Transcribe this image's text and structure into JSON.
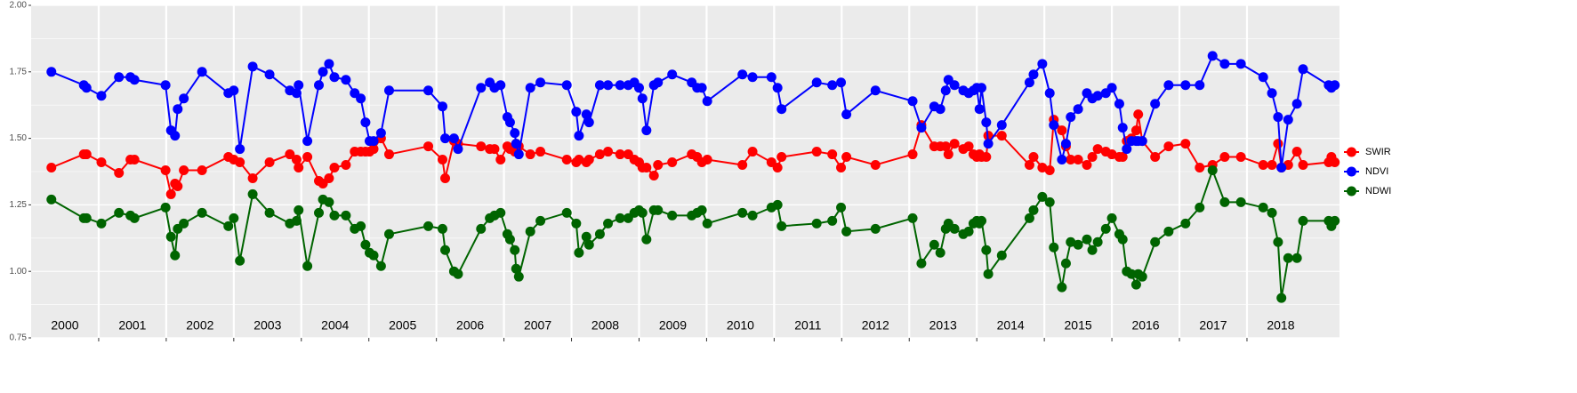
{
  "chart_data": {
    "type": "line",
    "x": [
      2000.3,
      2000.78,
      2000.82,
      2001.04,
      2001.3,
      2001.47,
      2001.53,
      2001.99,
      2002.07,
      2002.13,
      2002.17,
      2002.26,
      2002.53,
      2002.92,
      2003.0,
      2003.09,
      2003.28,
      2003.53,
      2003.83,
      2003.93,
      2003.96,
      2004.09,
      2004.26,
      2004.32,
      2004.41,
      2004.49,
      2004.66,
      2004.79,
      2004.88,
      2004.95,
      2005.01,
      2005.07,
      2005.18,
      2005.3,
      2005.88,
      2006.09,
      2006.13,
      2006.26,
      2006.32,
      2006.66,
      2006.79,
      2006.86,
      2006.95,
      2007.05,
      2007.09,
      2007.16,
      2007.18,
      2007.22,
      2007.39,
      2007.54,
      2007.93,
      2008.07,
      2008.11,
      2008.22,
      2008.26,
      2008.42,
      2008.54,
      2008.72,
      2008.84,
      2008.93,
      2009.0,
      2009.05,
      2009.11,
      2009.22,
      2009.28,
      2009.49,
      2009.78,
      2009.86,
      2009.93,
      2010.01,
      2010.53,
      2010.68,
      2010.96,
      2011.05,
      2011.11,
      2011.63,
      2011.86,
      2011.99,
      2012.07,
      2012.5,
      2013.05,
      2013.18,
      2013.37,
      2013.46,
      2013.54,
      2013.58,
      2013.67,
      2013.8,
      2013.88,
      2013.95,
      2014.0,
      2014.04,
      2014.07,
      2014.14,
      2014.17,
      2014.37,
      2014.78,
      2014.84,
      2014.97,
      2015.08,
      2015.14,
      2015.26,
      2015.32,
      2015.39,
      2015.5,
      2015.63,
      2015.71,
      2015.79,
      2015.91,
      2016.0,
      2016.11,
      2016.16,
      2016.22,
      2016.29,
      2016.36,
      2016.39,
      2016.45,
      2016.64,
      2016.84,
      2017.09,
      2017.3,
      2017.49,
      2017.67,
      2017.91,
      2018.24,
      2018.37,
      2018.46,
      2018.51,
      2018.61,
      2018.74,
      2018.83,
      2019.21,
      2019.25,
      2019.3
    ],
    "series": [
      {
        "name": "SWIR",
        "color": "#ff0000",
        "values": [
          1.39,
          1.44,
          1.44,
          1.41,
          1.37,
          1.42,
          1.42,
          1.38,
          1.29,
          1.33,
          1.32,
          1.38,
          1.38,
          1.43,
          1.42,
          1.41,
          1.35,
          1.41,
          1.44,
          1.42,
          1.39,
          1.43,
          1.34,
          1.33,
          1.35,
          1.39,
          1.4,
          1.45,
          1.45,
          1.45,
          1.45,
          1.46,
          1.5,
          1.44,
          1.47,
          1.42,
          1.35,
          1.49,
          1.48,
          1.47,
          1.46,
          1.46,
          1.42,
          1.47,
          1.46,
          1.45,
          1.48,
          1.47,
          1.44,
          1.45,
          1.42,
          1.41,
          1.42,
          1.41,
          1.42,
          1.44,
          1.45,
          1.44,
          1.44,
          1.42,
          1.41,
          1.39,
          1.39,
          1.36,
          1.4,
          1.41,
          1.44,
          1.43,
          1.41,
          1.42,
          1.4,
          1.45,
          1.41,
          1.39,
          1.43,
          1.45,
          1.44,
          1.39,
          1.43,
          1.4,
          1.44,
          1.55,
          1.47,
          1.47,
          1.47,
          1.44,
          1.48,
          1.46,
          1.47,
          1.44,
          1.43,
          1.44,
          1.43,
          1.43,
          1.51,
          1.51,
          1.4,
          1.43,
          1.39,
          1.38,
          1.57,
          1.53,
          1.47,
          1.42,
          1.42,
          1.4,
          1.43,
          1.46,
          1.45,
          1.44,
          1.43,
          1.43,
          1.49,
          1.5,
          1.53,
          1.59,
          1.49,
          1.43,
          1.47,
          1.48,
          1.39,
          1.4,
          1.43,
          1.43,
          1.4,
          1.4,
          1.48,
          1.39,
          1.4,
          1.45,
          1.4,
          1.41,
          1.43,
          1.41
        ]
      },
      {
        "name": "NDVI",
        "color": "#0000ff",
        "values": [
          1.75,
          1.7,
          1.69,
          1.66,
          1.73,
          1.73,
          1.72,
          1.7,
          1.53,
          1.51,
          1.61,
          1.65,
          1.75,
          1.67,
          1.68,
          1.46,
          1.77,
          1.74,
          1.68,
          1.67,
          1.7,
          1.49,
          1.7,
          1.75,
          1.78,
          1.73,
          1.72,
          1.67,
          1.65,
          1.56,
          1.49,
          1.49,
          1.52,
          1.68,
          1.68,
          1.62,
          1.5,
          1.5,
          1.46,
          1.69,
          1.71,
          1.69,
          1.7,
          1.58,
          1.56,
          1.52,
          1.48,
          1.44,
          1.69,
          1.71,
          1.7,
          1.6,
          1.51,
          1.59,
          1.56,
          1.7,
          1.7,
          1.7,
          1.7,
          1.71,
          1.69,
          1.65,
          1.53,
          1.7,
          1.71,
          1.74,
          1.71,
          1.69,
          1.69,
          1.64,
          1.74,
          1.73,
          1.73,
          1.69,
          1.61,
          1.71,
          1.7,
          1.71,
          1.59,
          1.68,
          1.64,
          1.54,
          1.62,
          1.61,
          1.68,
          1.72,
          1.7,
          1.68,
          1.67,
          1.68,
          1.69,
          1.61,
          1.69,
          1.56,
          1.48,
          1.55,
          1.71,
          1.74,
          1.78,
          1.67,
          1.55,
          1.42,
          1.48,
          1.58,
          1.61,
          1.67,
          1.65,
          1.66,
          1.67,
          1.69,
          1.63,
          1.54,
          1.46,
          1.49,
          1.49,
          1.49,
          1.49,
          1.63,
          1.7,
          1.7,
          1.7,
          1.81,
          1.78,
          1.78,
          1.73,
          1.67,
          1.58,
          1.39,
          1.57,
          1.63,
          1.76,
          1.7,
          1.69,
          1.7
        ]
      },
      {
        "name": "NDWI",
        "color": "#006400",
        "values": [
          1.27,
          1.2,
          1.2,
          1.18,
          1.22,
          1.21,
          1.2,
          1.24,
          1.13,
          1.06,
          1.16,
          1.18,
          1.22,
          1.17,
          1.2,
          1.04,
          1.29,
          1.22,
          1.18,
          1.19,
          1.23,
          1.02,
          1.22,
          1.27,
          1.26,
          1.21,
          1.21,
          1.16,
          1.17,
          1.1,
          1.07,
          1.06,
          1.02,
          1.14,
          1.17,
          1.16,
          1.08,
          1.0,
          0.99,
          1.16,
          1.2,
          1.21,
          1.22,
          1.14,
          1.12,
          1.08,
          1.01,
          0.98,
          1.15,
          1.19,
          1.22,
          1.18,
          1.07,
          1.13,
          1.1,
          1.14,
          1.18,
          1.2,
          1.2,
          1.22,
          1.23,
          1.22,
          1.12,
          1.23,
          1.23,
          1.21,
          1.21,
          1.22,
          1.23,
          1.18,
          1.22,
          1.21,
          1.24,
          1.25,
          1.17,
          1.18,
          1.19,
          1.24,
          1.15,
          1.16,
          1.2,
          1.03,
          1.1,
          1.07,
          1.16,
          1.18,
          1.16,
          1.14,
          1.15,
          1.18,
          1.19,
          1.18,
          1.19,
          1.08,
          0.99,
          1.06,
          1.2,
          1.23,
          1.28,
          1.26,
          1.09,
          0.94,
          1.03,
          1.11,
          1.1,
          1.12,
          1.08,
          1.11,
          1.16,
          1.2,
          1.14,
          1.12,
          1.0,
          0.99,
          0.95,
          0.99,
          0.98,
          1.11,
          1.15,
          1.18,
          1.24,
          1.38,
          1.26,
          1.26,
          1.24,
          1.22,
          1.11,
          0.9,
          1.05,
          1.05,
          1.19,
          1.19,
          1.17,
          1.19
        ]
      }
    ],
    "xlim": [
      2000,
      2019.37
    ],
    "xticks": [
      2001,
      2002,
      2003,
      2004,
      2005,
      2006,
      2007,
      2008,
      2009,
      2010,
      2011,
      2012,
      2013,
      2014,
      2015,
      2016,
      2017,
      2018
    ],
    "ylim": [
      0.75,
      2.0
    ],
    "yticks": [
      0.75,
      {
        "value": 1,
        "label": "1.00"
      },
      1.25,
      {
        "value": 1.5,
        "label": "1.50"
      },
      1.75,
      {
        "value": 2,
        "label": "2.00"
      }
    ],
    "minor_yticks": [
      0.875,
      1.125,
      1.375,
      1.625,
      1.875
    ],
    "annotations": [
      {
        "x": 2000.5,
        "text": "2000"
      },
      {
        "x": 2001.5,
        "text": "2001"
      },
      {
        "x": 2002.5,
        "text": "2002"
      },
      {
        "x": 2003.5,
        "text": "2003"
      },
      {
        "x": 2004.5,
        "text": "2004"
      },
      {
        "x": 2005.5,
        "text": "2005"
      },
      {
        "x": 2006.5,
        "text": "2006"
      },
      {
        "x": 2007.5,
        "text": "2007"
      },
      {
        "x": 2008.5,
        "text": "2008"
      },
      {
        "x": 2009.5,
        "text": "2009"
      },
      {
        "x": 2010.5,
        "text": "2010"
      },
      {
        "x": 2011.5,
        "text": "2011"
      },
      {
        "x": 2012.5,
        "text": "2012"
      },
      {
        "x": 2013.5,
        "text": "2013"
      },
      {
        "x": 2014.5,
        "text": "2014"
      },
      {
        "x": 2015.5,
        "text": "2015"
      },
      {
        "x": 2016.5,
        "text": "2016"
      },
      {
        "x": 2017.5,
        "text": "2017"
      },
      {
        "x": 2018.5,
        "text": "2018"
      }
    ],
    "grid": true,
    "legend": "right"
  }
}
